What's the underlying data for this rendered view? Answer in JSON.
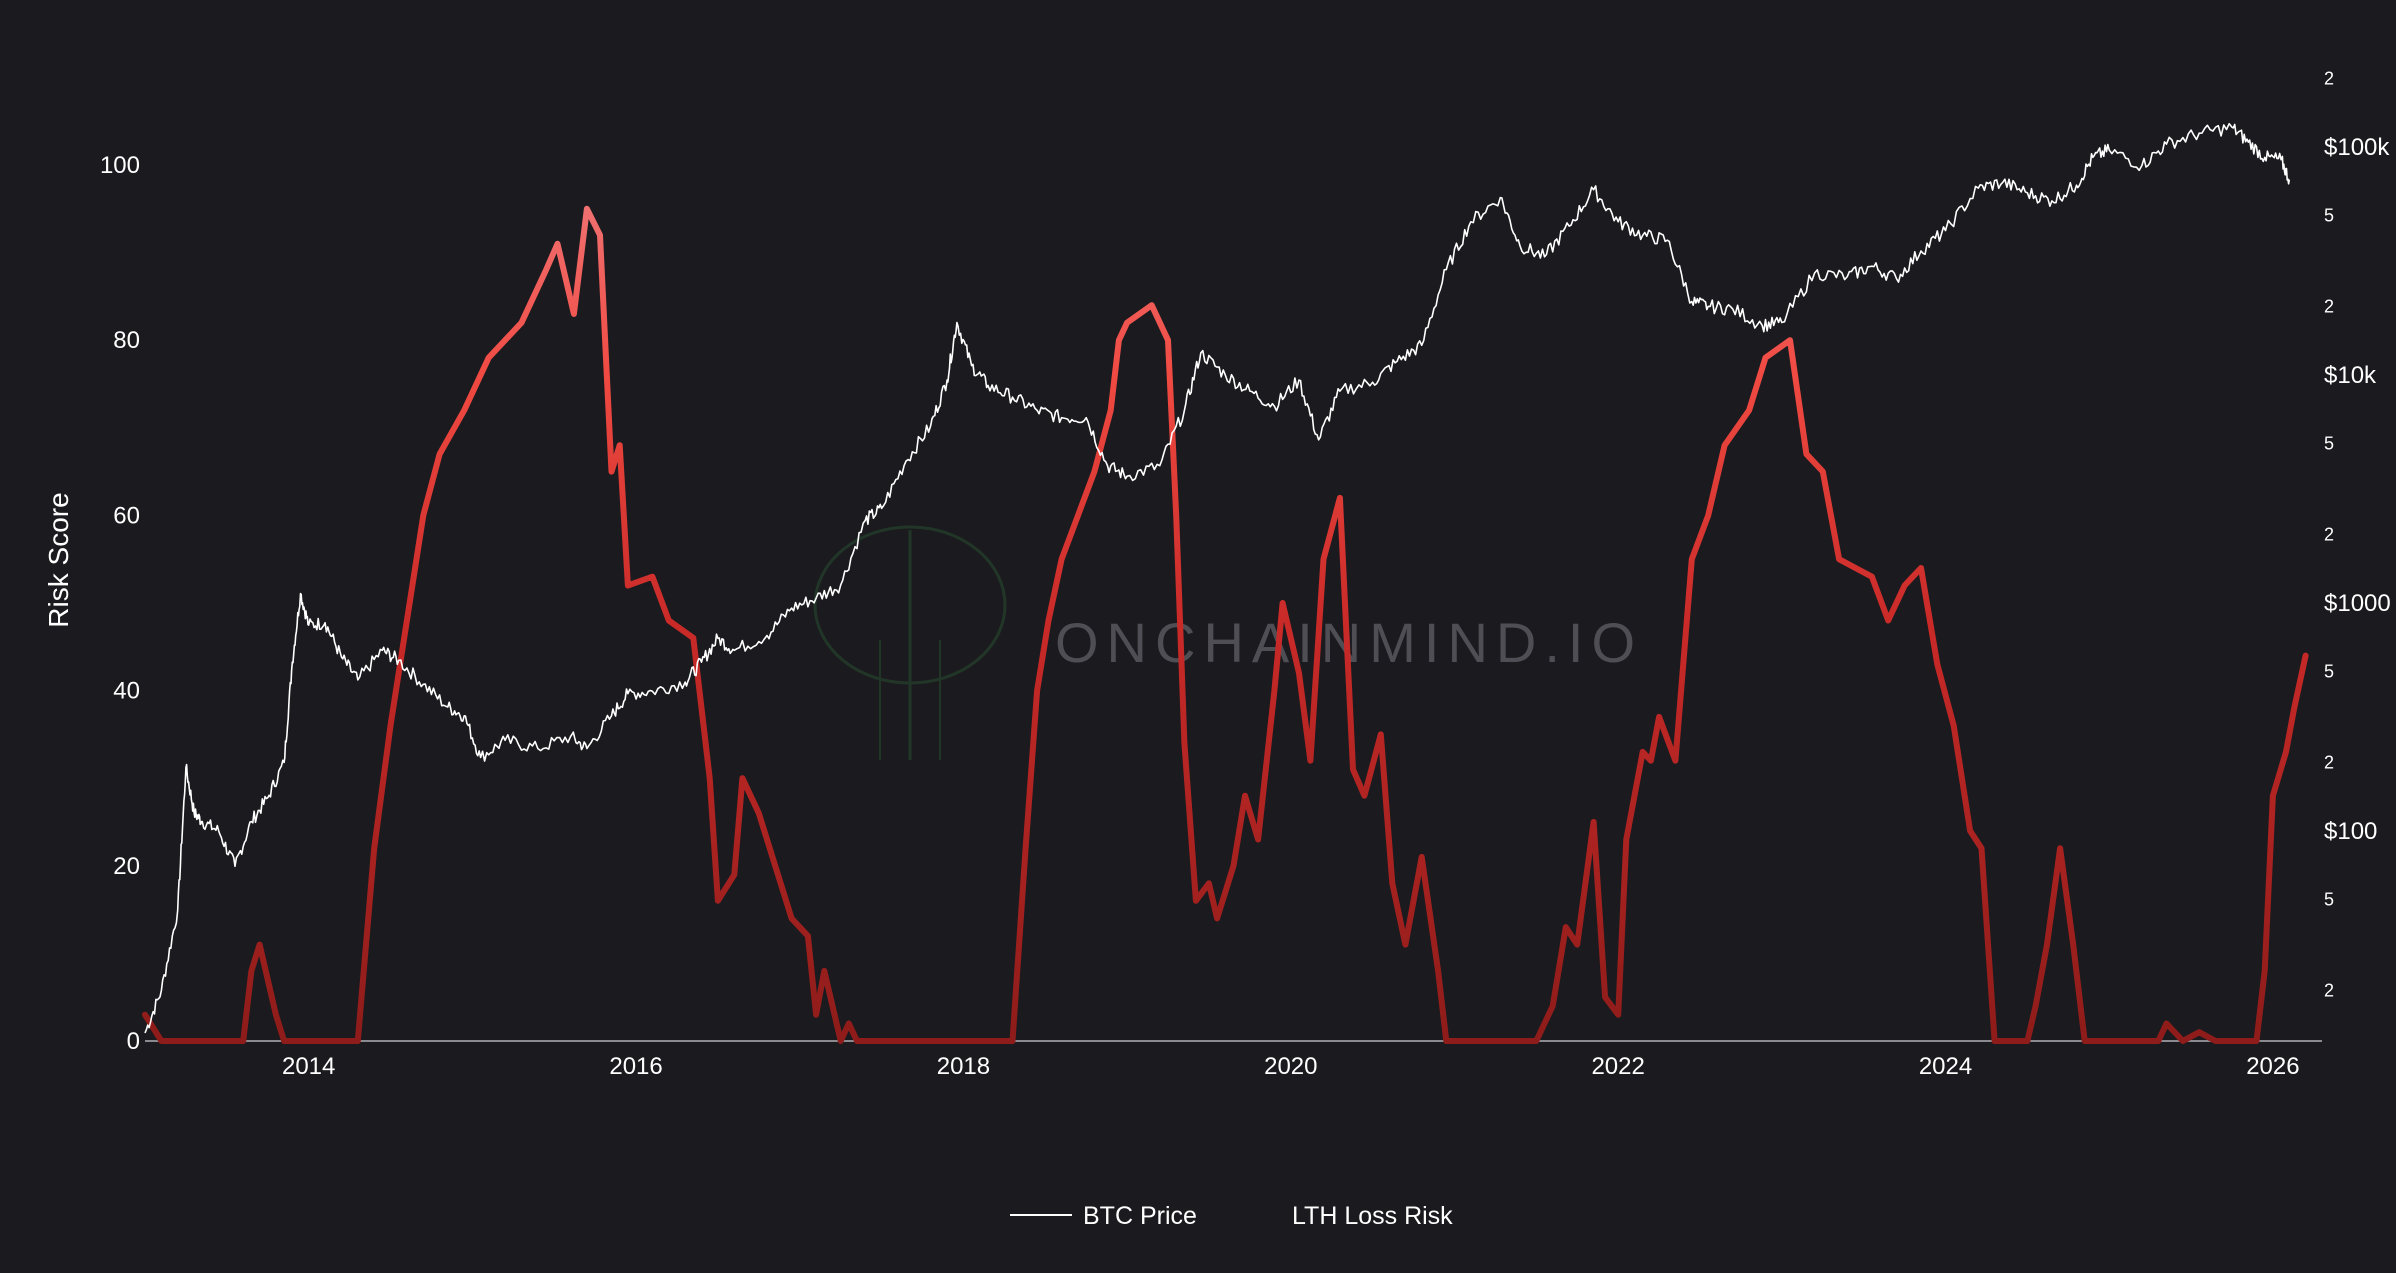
{
  "chart_data": {
    "type": "line",
    "title": "",
    "watermark": "ONCHAINMIND.IO",
    "y_left": {
      "label": "Risk Score",
      "range": [
        0,
        110
      ],
      "ticks": [
        0,
        20,
        40,
        60,
        80,
        100
      ]
    },
    "y_right": {
      "scale": "log",
      "range": [
        1,
        300000
      ],
      "major_ticks": [
        {
          "value": 100,
          "label": "$100"
        },
        {
          "value": 1000,
          "label": "$1000"
        },
        {
          "value": 10000,
          "label": "$10k"
        },
        {
          "value": 100000,
          "label": "$100k"
        }
      ],
      "minor_ticks": [
        {
          "value": 20,
          "label": "2"
        },
        {
          "value": 50,
          "label": "5"
        },
        {
          "value": 200,
          "label": "2"
        },
        {
          "value": 500,
          "label": "5"
        },
        {
          "value": 2000,
          "label": "2"
        },
        {
          "value": 5000,
          "label": "5"
        },
        {
          "value": 20000,
          "label": "2"
        },
        {
          "value": 50000,
          "label": "5"
        },
        {
          "value": 200000,
          "label": "2"
        }
      ]
    },
    "x": {
      "range": [
        2013.0,
        2026.3
      ],
      "ticks": [
        {
          "value": 2014,
          "label": "2014"
        },
        {
          "value": 2016,
          "label": "2016"
        },
        {
          "value": 2018,
          "label": "2018"
        },
        {
          "value": 2020,
          "label": "2020"
        },
        {
          "value": 2022,
          "label": "2022"
        },
        {
          "value": 2024,
          "label": "2024"
        },
        {
          "value": 2026,
          "label": "2026"
        }
      ]
    },
    "legend": {
      "position": "bottom-center",
      "entries": [
        {
          "name": "BTC Price",
          "color": "#ffffff"
        },
        {
          "name": "LTH Loss Risk",
          "color": "#e8423a"
        }
      ]
    },
    "series": [
      {
        "name": "BTC Price",
        "axis": "right",
        "color": "#ffffff",
        "points": [
          [
            2013.0,
            13
          ],
          [
            2013.1,
            20
          ],
          [
            2013.2,
            45
          ],
          [
            2013.25,
            190
          ],
          [
            2013.3,
            120
          ],
          [
            2013.35,
            110
          ],
          [
            2013.45,
            100
          ],
          [
            2013.55,
            70
          ],
          [
            2013.65,
            110
          ],
          [
            2013.75,
            140
          ],
          [
            2013.85,
            200
          ],
          [
            2013.9,
            550
          ],
          [
            2013.95,
            1100
          ],
          [
            2014.0,
            800
          ],
          [
            2014.1,
            820
          ],
          [
            2014.2,
            580
          ],
          [
            2014.3,
            460
          ],
          [
            2014.45,
            620
          ],
          [
            2014.55,
            560
          ],
          [
            2014.7,
            440
          ],
          [
            2014.85,
            350
          ],
          [
            2014.95,
            320
          ],
          [
            2015.05,
            210
          ],
          [
            2015.2,
            250
          ],
          [
            2015.4,
            230
          ],
          [
            2015.6,
            260
          ],
          [
            2015.7,
            230
          ],
          [
            2015.85,
            320
          ],
          [
            2015.95,
            400
          ],
          [
            2016.1,
            410
          ],
          [
            2016.3,
            450
          ],
          [
            2016.4,
            550
          ],
          [
            2016.5,
            700
          ],
          [
            2016.6,
            620
          ],
          [
            2016.8,
            720
          ],
          [
            2016.95,
            950
          ],
          [
            2017.1,
            1050
          ],
          [
            2017.25,
            1200
          ],
          [
            2017.4,
            2300
          ],
          [
            2017.5,
            2600
          ],
          [
            2017.65,
            4200
          ],
          [
            2017.8,
            6000
          ],
          [
            2017.9,
            9500
          ],
          [
            2017.96,
            17000
          ],
          [
            2018.05,
            11000
          ],
          [
            2018.15,
            9000
          ],
          [
            2018.3,
            8000
          ],
          [
            2018.45,
            7000
          ],
          [
            2018.6,
            6500
          ],
          [
            2018.75,
            6500
          ],
          [
            2018.88,
            4000
          ],
          [
            2019.0,
            3600
          ],
          [
            2019.2,
            4000
          ],
          [
            2019.35,
            7000
          ],
          [
            2019.45,
            12500
          ],
          [
            2019.6,
            10000
          ],
          [
            2019.75,
            8500
          ],
          [
            2019.9,
            7300
          ],
          [
            2020.05,
            9500
          ],
          [
            2020.17,
            5200
          ],
          [
            2020.3,
            8500
          ],
          [
            2020.5,
            9300
          ],
          [
            2020.65,
            11500
          ],
          [
            2020.8,
            13500
          ],
          [
            2020.95,
            29000
          ],
          [
            2021.1,
            47000
          ],
          [
            2021.28,
            60000
          ],
          [
            2021.4,
            37000
          ],
          [
            2021.55,
            33000
          ],
          [
            2021.7,
            45000
          ],
          [
            2021.85,
            65000
          ],
          [
            2022.0,
            47000
          ],
          [
            2022.15,
            41000
          ],
          [
            2022.3,
            39000
          ],
          [
            2022.45,
            21000
          ],
          [
            2022.55,
            20000
          ],
          [
            2022.7,
            19500
          ],
          [
            2022.88,
            16500
          ],
          [
            2023.0,
            17000
          ],
          [
            2023.2,
            28000
          ],
          [
            2023.4,
            27000
          ],
          [
            2023.55,
            30000
          ],
          [
            2023.7,
            26500
          ],
          [
            2023.85,
            35000
          ],
          [
            2024.0,
            43000
          ],
          [
            2024.2,
            66000
          ],
          [
            2024.35,
            70000
          ],
          [
            2024.5,
            63000
          ],
          [
            2024.65,
            58000
          ],
          [
            2024.8,
            68000
          ],
          [
            2024.9,
            90000
          ],
          [
            2025.0,
            97000
          ],
          [
            2025.2,
            83000
          ],
          [
            2025.35,
            103000
          ],
          [
            2025.55,
            115000
          ],
          [
            2025.75,
            122000
          ],
          [
            2025.85,
            105000
          ],
          [
            2025.95,
            90000
          ],
          [
            2026.05,
            88000
          ],
          [
            2026.1,
            72000
          ]
        ]
      },
      {
        "name": "LTH Loss Risk",
        "axis": "left",
        "color": "#e8423a",
        "points": [
          [
            2013.0,
            3
          ],
          [
            2013.1,
            0
          ],
          [
            2013.6,
            0
          ],
          [
            2013.65,
            8
          ],
          [
            2013.7,
            11
          ],
          [
            2013.8,
            3
          ],
          [
            2013.85,
            0
          ],
          [
            2014.3,
            0
          ],
          [
            2014.4,
            22
          ],
          [
            2014.5,
            36
          ],
          [
            2014.6,
            48
          ],
          [
            2014.7,
            60
          ],
          [
            2014.8,
            67
          ],
          [
            2014.95,
            72
          ],
          [
            2015.1,
            78
          ],
          [
            2015.3,
            82
          ],
          [
            2015.45,
            88
          ],
          [
            2015.52,
            91
          ],
          [
            2015.62,
            83
          ],
          [
            2015.7,
            95
          ],
          [
            2015.78,
            92
          ],
          [
            2015.85,
            65
          ],
          [
            2015.9,
            68
          ],
          [
            2015.95,
            52
          ],
          [
            2016.1,
            53
          ],
          [
            2016.2,
            48
          ],
          [
            2016.35,
            46
          ],
          [
            2016.45,
            30
          ],
          [
            2016.5,
            16
          ],
          [
            2016.6,
            19
          ],
          [
            2016.65,
            30
          ],
          [
            2016.75,
            26
          ],
          [
            2016.85,
            20
          ],
          [
            2016.95,
            14
          ],
          [
            2017.05,
            12
          ],
          [
            2017.1,
            3
          ],
          [
            2017.15,
            8
          ],
          [
            2017.25,
            0
          ],
          [
            2017.3,
            2
          ],
          [
            2017.35,
            0
          ],
          [
            2018.3,
            0
          ],
          [
            2018.38,
            22
          ],
          [
            2018.45,
            40
          ],
          [
            2018.52,
            48
          ],
          [
            2018.6,
            55
          ],
          [
            2018.7,
            60
          ],
          [
            2018.8,
            65
          ],
          [
            2018.9,
            72
          ],
          [
            2018.95,
            80
          ],
          [
            2019.0,
            82
          ],
          [
            2019.15,
            84
          ],
          [
            2019.25,
            80
          ],
          [
            2019.3,
            60
          ],
          [
            2019.35,
            34
          ],
          [
            2019.42,
            16
          ],
          [
            2019.5,
            18
          ],
          [
            2019.55,
            14
          ],
          [
            2019.65,
            20
          ],
          [
            2019.72,
            28
          ],
          [
            2019.8,
            23
          ],
          [
            2019.9,
            40
          ],
          [
            2019.95,
            50
          ],
          [
            2020.05,
            42
          ],
          [
            2020.12,
            32
          ],
          [
            2020.2,
            55
          ],
          [
            2020.3,
            62
          ],
          [
            2020.38,
            31
          ],
          [
            2020.45,
            28
          ],
          [
            2020.55,
            35
          ],
          [
            2020.62,
            18
          ],
          [
            2020.7,
            11
          ],
          [
            2020.8,
            21
          ],
          [
            2020.9,
            8
          ],
          [
            2020.95,
            0
          ],
          [
            2021.5,
            0
          ],
          [
            2021.6,
            4
          ],
          [
            2021.68,
            13
          ],
          [
            2021.75,
            11
          ],
          [
            2021.85,
            25
          ],
          [
            2021.92,
            5
          ],
          [
            2022.0,
            3
          ],
          [
            2022.05,
            23
          ],
          [
            2022.15,
            33
          ],
          [
            2022.2,
            32
          ],
          [
            2022.25,
            37
          ],
          [
            2022.35,
            32
          ],
          [
            2022.45,
            55
          ],
          [
            2022.55,
            60
          ],
          [
            2022.65,
            68
          ],
          [
            2022.8,
            72
          ],
          [
            2022.9,
            78
          ],
          [
            2023.05,
            80
          ],
          [
            2023.15,
            67
          ],
          [
            2023.25,
            65
          ],
          [
            2023.35,
            55
          ],
          [
            2023.45,
            54
          ],
          [
            2023.55,
            53
          ],
          [
            2023.65,
            48
          ],
          [
            2023.75,
            52
          ],
          [
            2023.85,
            54
          ],
          [
            2023.95,
            43
          ],
          [
            2024.05,
            36
          ],
          [
            2024.15,
            24
          ],
          [
            2024.22,
            22
          ],
          [
            2024.3,
            0
          ],
          [
            2024.5,
            0
          ],
          [
            2024.55,
            4
          ],
          [
            2024.62,
            11
          ],
          [
            2024.7,
            22
          ],
          [
            2024.78,
            11
          ],
          [
            2024.85,
            0
          ],
          [
            2025.3,
            0
          ],
          [
            2025.35,
            2
          ],
          [
            2025.45,
            0
          ],
          [
            2025.55,
            1
          ],
          [
            2025.65,
            0
          ],
          [
            2025.9,
            0
          ],
          [
            2025.95,
            8
          ],
          [
            2026.0,
            28
          ],
          [
            2026.08,
            33
          ],
          [
            2026.13,
            38
          ],
          [
            2026.2,
            44
          ]
        ]
      }
    ]
  }
}
